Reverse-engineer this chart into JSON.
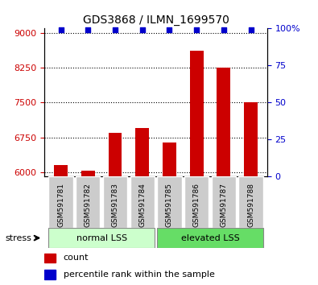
{
  "title": "GDS3868 / ILMN_1699570",
  "categories": [
    "GSM591781",
    "GSM591782",
    "GSM591783",
    "GSM591784",
    "GSM591785",
    "GSM591786",
    "GSM591787",
    "GSM591788"
  ],
  "counts": [
    6160,
    6025,
    6840,
    6960,
    6640,
    8620,
    8260,
    7500
  ],
  "percentiles": [
    99,
    99,
    99,
    99,
    99,
    99,
    99,
    99
  ],
  "ylim_left": [
    5900,
    9100
  ],
  "ylim_right": [
    0,
    100
  ],
  "yticks_left": [
    6000,
    6750,
    7500,
    8250,
    9000
  ],
  "yticks_right": [
    0,
    25,
    50,
    75,
    100
  ],
  "ytick_right_labels": [
    "0",
    "25",
    "50",
    "75",
    "100%"
  ],
  "bar_color": "#cc0000",
  "percentile_color": "#0000cc",
  "group1_label": "normal LSS",
  "group2_label": "elevated LSS",
  "group1_color": "#ccffcc",
  "group2_color": "#66dd66",
  "stress_label": "stress",
  "legend_count_label": "count",
  "legend_pct_label": "percentile rank within the sample",
  "bar_width": 0.5,
  "tick_label_color_left": "#cc0000",
  "tick_label_color_right": "#0000cc"
}
